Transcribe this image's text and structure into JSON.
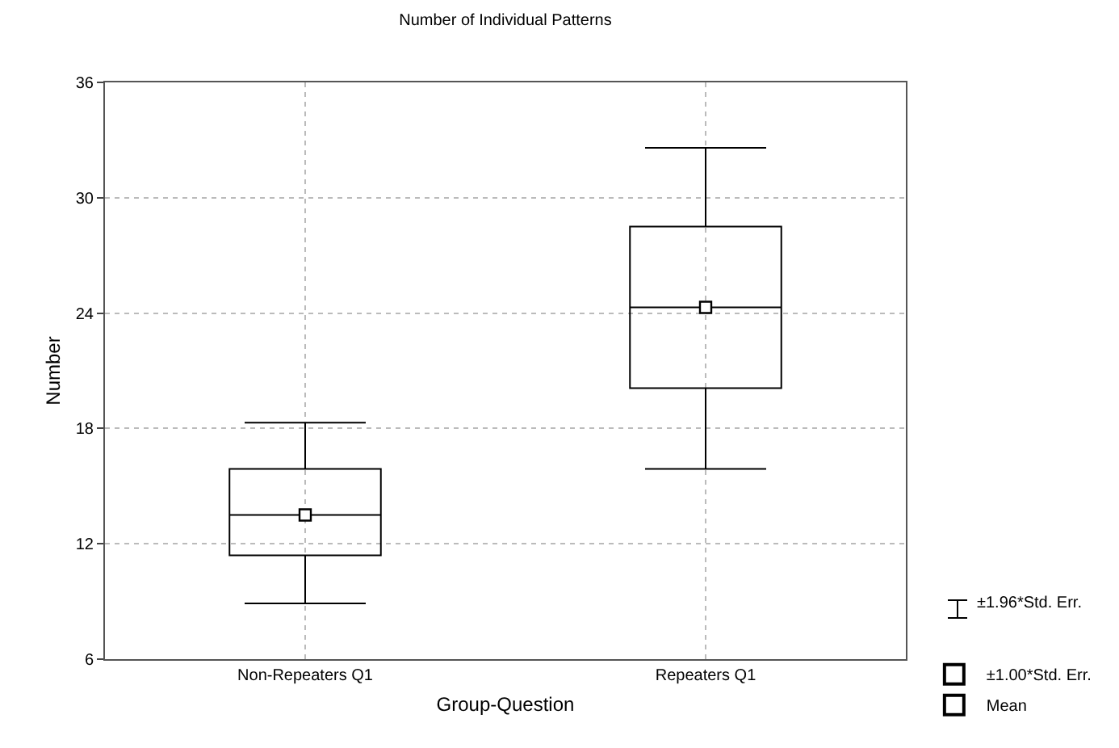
{
  "chart_data": {
    "type": "box",
    "title": "Number of Individual Patterns",
    "xlabel": "Group-Question",
    "ylabel": "Number",
    "categories": [
      "Non-Repeaters Q1",
      "Repeaters Q1"
    ],
    "series": [
      {
        "name": "±1.00*Std. Err.",
        "color": "#000000",
        "boxes": [
          {
            "low": 8.9,
            "q1": 11.4,
            "median": 13.5,
            "q3": 15.9,
            "high": 18.3
          },
          {
            "low": 15.9,
            "q1": 20.1,
            "median": 24.3,
            "q3": 28.5,
            "high": 32.6
          }
        ]
      },
      {
        "name": "Mean",
        "type": "scatter",
        "color": "#000000",
        "marker": "square",
        "values": [
          13.5,
          24.3
        ]
      }
    ],
    "annotations": [
      "±1.96*Std. Err."
    ],
    "ylim": [
      6,
      36
    ],
    "yticks": [
      6,
      12,
      18,
      24,
      30,
      36
    ],
    "grid": true,
    "legend": "bottom right"
  }
}
